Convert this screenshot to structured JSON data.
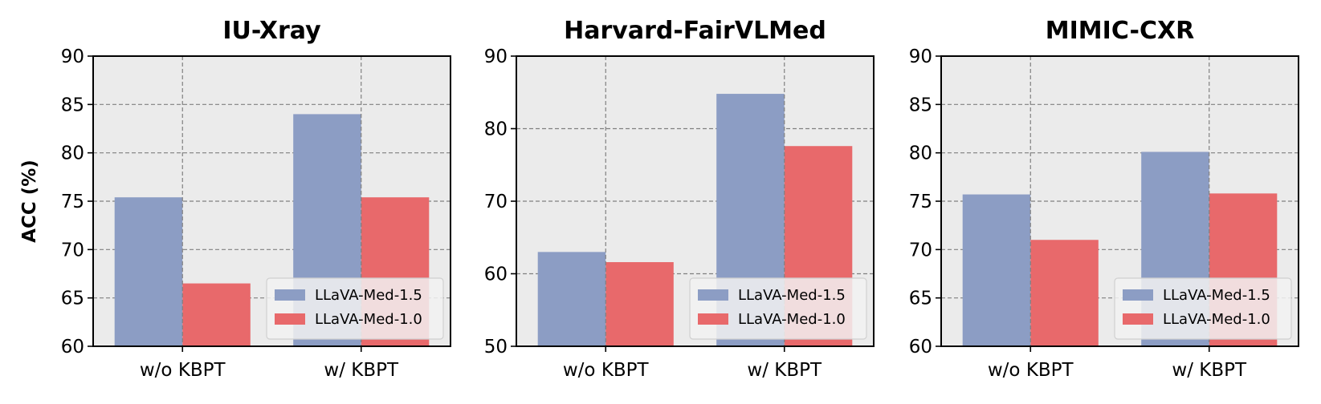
{
  "chart_data": [
    {
      "type": "bar",
      "title": "IU-Xray",
      "ylabel": "ACC (%)",
      "categories": [
        "w/o KBPT",
        "w/ KBPT"
      ],
      "ylim": [
        60,
        90
      ],
      "yticks": [
        60,
        65,
        70,
        75,
        80,
        85,
        90
      ],
      "grid": true,
      "legend": "lower-right",
      "series": [
        {
          "name": "LLaVA-Med-1.5",
          "color": "#8c9dc4",
          "values": [
            75.4,
            84.0
          ]
        },
        {
          "name": "LLaVA-Med-1.0",
          "color": "#e8696b",
          "values": [
            66.5,
            75.4
          ]
        }
      ]
    },
    {
      "type": "bar",
      "title": "Harvard-FairVLMed",
      "ylabel": "",
      "categories": [
        "w/o KBPT",
        "w/ KBPT"
      ],
      "ylim": [
        50,
        90
      ],
      "yticks": [
        50,
        60,
        70,
        80,
        90
      ],
      "grid": true,
      "legend": "lower-right",
      "series": [
        {
          "name": "LLaVA-Med-1.5",
          "color": "#8c9dc4",
          "values": [
            63.0,
            84.8
          ]
        },
        {
          "name": "LLaVA-Med-1.0",
          "color": "#e8696b",
          "values": [
            61.6,
            77.6
          ]
        }
      ]
    },
    {
      "type": "bar",
      "title": "MIMIC-CXR",
      "ylabel": "",
      "categories": [
        "w/o KBPT",
        "w/ KBPT"
      ],
      "ylim": [
        60,
        90
      ],
      "yticks": [
        60,
        65,
        70,
        75,
        80,
        85,
        90
      ],
      "grid": true,
      "legend": "lower-right",
      "series": [
        {
          "name": "LLaVA-Med-1.5",
          "color": "#8c9dc4",
          "values": [
            75.7,
            80.1
          ]
        },
        {
          "name": "LLaVA-Med-1.0",
          "color": "#e8696b",
          "values": [
            71.0,
            75.8
          ]
        }
      ]
    }
  ]
}
